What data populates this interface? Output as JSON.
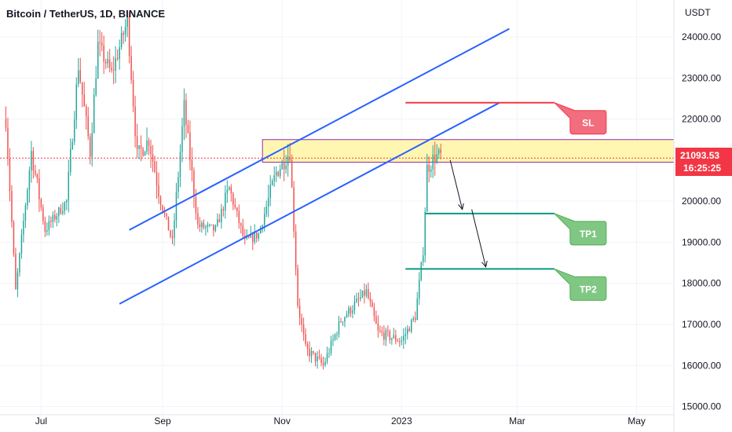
{
  "chart_data": {
    "type": "candlestick",
    "title": "Bitcoin / TetherUS, 1D, BINANCE",
    "currency": "USDT",
    "ylim": [
      14800,
      24900
    ],
    "y_ticks": [
      "24000.00",
      "23000.00",
      "22000.00",
      "21000.00",
      "20000.00",
      "19000.00",
      "18000.00",
      "17000.00",
      "16000.00",
      "15000.00"
    ],
    "y_tick_values": [
      24000,
      23000,
      22000,
      21000,
      20000,
      19000,
      18000,
      17000,
      16000,
      15000
    ],
    "x_ticks": [
      {
        "label": "Jul",
        "date": "2022-07-01"
      },
      {
        "label": "Sep",
        "date": "2022-09-01"
      },
      {
        "label": "Nov",
        "date": "2022-11-01"
      },
      {
        "label": "2023",
        "date": "2023-01-01"
      },
      {
        "label": "Mar",
        "date": "2023-03-01"
      },
      {
        "label": "May",
        "date": "2023-05-01"
      }
    ],
    "x_range": [
      "2022-06-10",
      "2023-05-20"
    ],
    "last_price": {
      "value": "21093.53",
      "countdown": "16:25:25",
      "color": "#f23645"
    },
    "colors": {
      "up": "#26a69a",
      "down": "#ef5350",
      "channel": "#2962ff",
      "sl": "#f23645",
      "tp": "#089981",
      "zone_fill": "#fff59d",
      "zone_border": "#9c27b0"
    },
    "anchor_prices": [
      [
        "2022-06-13",
        22000
      ],
      [
        "2022-06-18",
        17800
      ],
      [
        "2022-06-26",
        21200
      ],
      [
        "2022-07-03",
        19300
      ],
      [
        "2022-07-14",
        20000
      ],
      [
        "2022-07-20",
        23300
      ],
      [
        "2022-07-26",
        21200
      ],
      [
        "2022-07-30",
        23800
      ],
      [
        "2022-08-06",
        23100
      ],
      [
        "2022-08-14",
        24400
      ],
      [
        "2022-08-19",
        21100
      ],
      [
        "2022-08-25",
        21500
      ],
      [
        "2022-08-31",
        20000
      ],
      [
        "2022-09-06",
        19000
      ],
      [
        "2022-09-12",
        22300
      ],
      [
        "2022-09-19",
        19400
      ],
      [
        "2022-09-28",
        19300
      ],
      [
        "2022-10-05",
        20300
      ],
      [
        "2022-10-13",
        19000
      ],
      [
        "2022-10-20",
        19200
      ],
      [
        "2022-10-29",
        20700
      ],
      [
        "2022-11-05",
        21200
      ],
      [
        "2022-11-09",
        17500
      ],
      [
        "2022-11-13",
        16400
      ],
      [
        "2022-11-22",
        16000
      ],
      [
        "2022-12-01",
        17100
      ],
      [
        "2022-12-14",
        17800
      ],
      [
        "2022-12-20",
        16800
      ],
      [
        "2023-01-01",
        16600
      ],
      [
        "2023-01-08",
        17200
      ],
      [
        "2023-01-12",
        18800
      ],
      [
        "2023-01-14",
        20800
      ],
      [
        "2023-01-18",
        21100
      ],
      [
        "2023-01-21",
        21093
      ]
    ],
    "channel_upper": [
      [
        "2022-08-15",
        19300
      ],
      [
        "2023-02-25",
        24200
      ]
    ],
    "channel_lower": [
      [
        "2022-08-10",
        17500
      ],
      [
        "2023-02-20",
        22400
      ]
    ],
    "resistance_zone": {
      "y1": 20950,
      "y2": 21500,
      "x_start": "2022-10-22"
    },
    "resistance_line": {
      "y": 21050,
      "x_start": "2022-06-10"
    },
    "levels": [
      {
        "name": "SL",
        "y": 22400,
        "x_start": "2023-01-03",
        "x_end": "2023-03-20",
        "color": "#f23645",
        "label": "SL"
      },
      {
        "name": "TP1",
        "y": 19700,
        "x_start": "2023-01-13",
        "x_end": "2023-03-20",
        "color": "#089981",
        "label": "TP1"
      },
      {
        "name": "TP2",
        "y": 18350,
        "x_start": "2023-01-03",
        "x_end": "2023-03-20",
        "color": "#089981",
        "label": "TP2"
      }
    ],
    "projection": [
      [
        "2023-01-21",
        21000
      ],
      [
        "2023-02-01",
        19800
      ],
      [
        "2023-02-13",
        18400
      ]
    ]
  }
}
